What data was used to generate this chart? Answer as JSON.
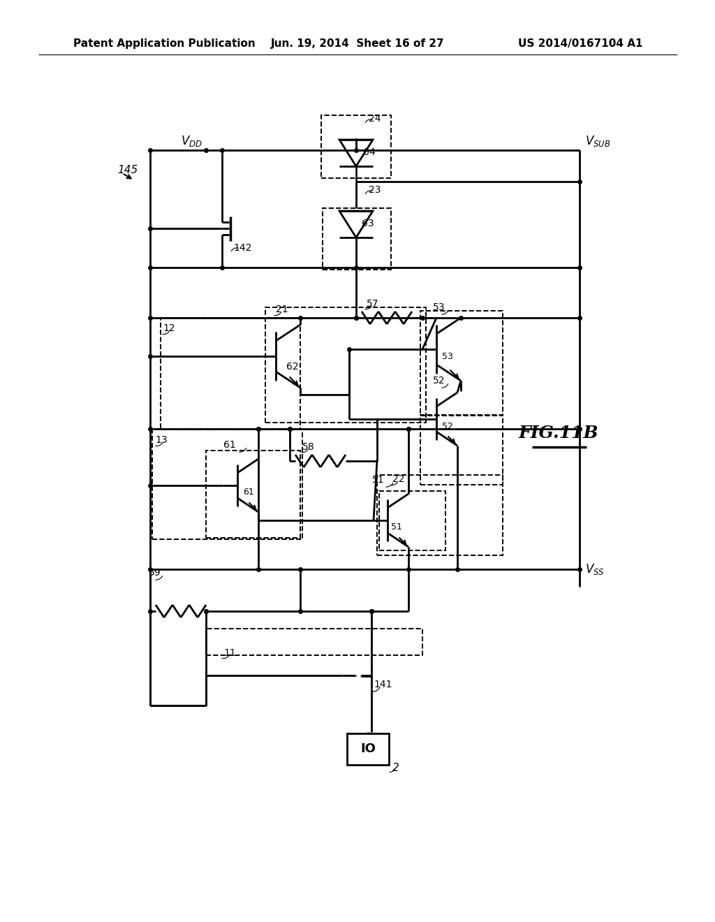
{
  "title_left": "Patent Application Publication",
  "title_center": "Jun. 19, 2014  Sheet 16 of 27",
  "title_right": "US 2014/0167104 A1",
  "fig_label": "FIG.11B",
  "background": "#ffffff"
}
